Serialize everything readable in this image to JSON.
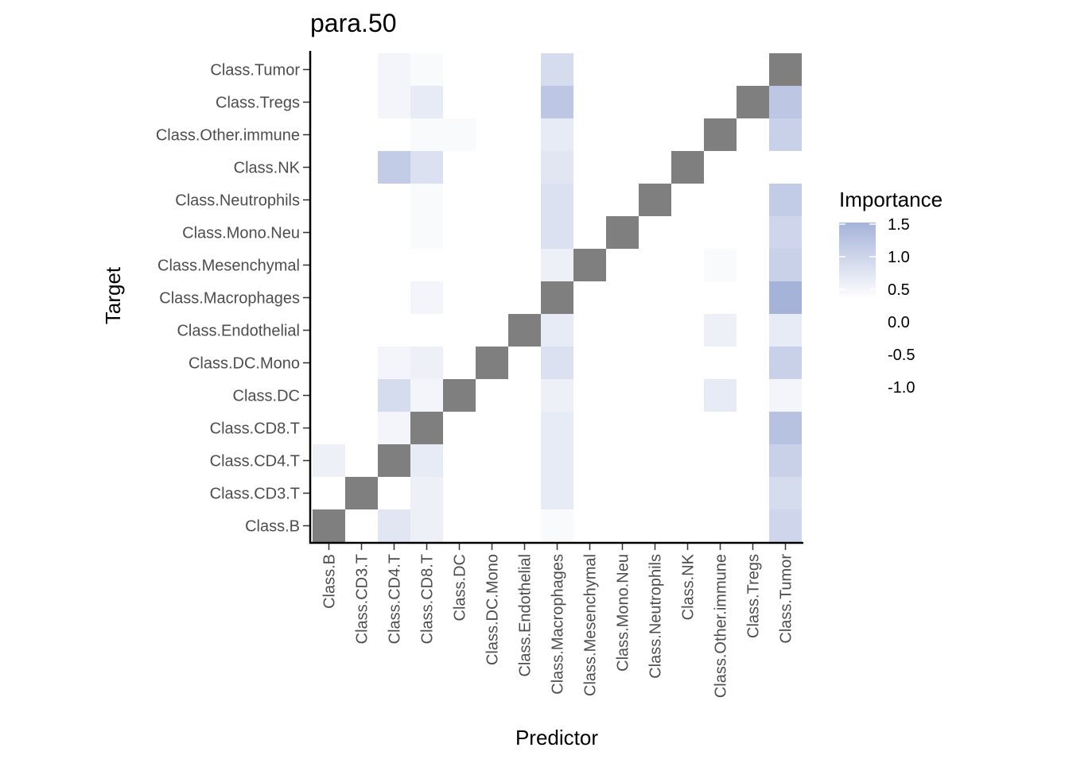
{
  "chart_data": {
    "type": "heatmap",
    "title": "para.50",
    "xlabel": "Predictor",
    "ylabel": "Target",
    "x_categories": [
      "Class.B",
      "Class.CD3.T",
      "Class.CD4.T",
      "Class.CD8.T",
      "Class.DC",
      "Class.DC.Mono",
      "Class.Endothelial",
      "Class.Macrophages",
      "Class.Mesenchymal",
      "Class.Mono.Neu",
      "Class.Neutrophils",
      "Class.NK",
      "Class.Other.immune",
      "Class.Tregs",
      "Class.Tumor"
    ],
    "y_categories": [
      "Class.B",
      "Class.CD3.T",
      "Class.CD4.T",
      "Class.CD8.T",
      "Class.DC",
      "Class.DC.Mono",
      "Class.Endothelial",
      "Class.Macrophages",
      "Class.Mesenchymal",
      "Class.Mono.Neu",
      "Class.Neutrophils",
      "Class.NK",
      "Class.Other.immune",
      "Class.Tregs",
      "Class.Tumor"
    ],
    "values": [
      [
        null,
        0.0,
        0.5,
        0.3,
        0.0,
        0.0,
        0.0,
        0.1,
        0.0,
        0.0,
        0.0,
        0.0,
        0.0,
        0.0,
        0.8
      ],
      [
        0.0,
        null,
        0.0,
        0.3,
        0.0,
        0.0,
        0.0,
        0.4,
        0.0,
        0.0,
        0.0,
        0.0,
        0.0,
        0.0,
        0.7
      ],
      [
        0.3,
        0.0,
        null,
        0.4,
        0.0,
        0.0,
        0.0,
        0.4,
        0.0,
        0.0,
        0.0,
        0.0,
        0.0,
        0.0,
        0.9
      ],
      [
        0.0,
        0.0,
        0.2,
        null,
        0.0,
        0.0,
        0.0,
        0.4,
        0.0,
        0.0,
        0.0,
        0.0,
        0.0,
        0.0,
        1.2
      ],
      [
        0.0,
        0.0,
        0.7,
        0.2,
        null,
        0.0,
        0.0,
        0.3,
        0.0,
        0.0,
        0.0,
        0.0,
        0.4,
        0.0,
        0.2
      ],
      [
        0.0,
        0.0,
        0.2,
        0.3,
        0.0,
        null,
        0.0,
        0.6,
        0.0,
        0.0,
        0.0,
        0.0,
        0.0,
        0.0,
        0.9
      ],
      [
        0.0,
        0.0,
        0.0,
        0.0,
        0.0,
        0.0,
        null,
        0.4,
        0.0,
        0.0,
        0.0,
        0.0,
        0.3,
        0.0,
        0.4
      ],
      [
        0.0,
        0.0,
        0.0,
        0.2,
        0.0,
        0.0,
        0.0,
        null,
        0.0,
        0.0,
        0.0,
        0.0,
        0.0,
        0.0,
        1.5
      ],
      [
        0.0,
        0.0,
        0.0,
        0.0,
        0.0,
        0.0,
        0.0,
        0.3,
        null,
        0.0,
        0.0,
        0.0,
        0.1,
        0.0,
        0.9
      ],
      [
        0.0,
        0.0,
        0.0,
        0.1,
        0.0,
        0.0,
        0.0,
        0.6,
        0.0,
        null,
        0.0,
        0.0,
        0.0,
        0.0,
        0.8
      ],
      [
        0.0,
        0.0,
        0.0,
        0.1,
        0.0,
        0.0,
        0.0,
        0.6,
        0.0,
        0.0,
        null,
        0.0,
        0.0,
        0.0,
        1.0
      ],
      [
        0.0,
        0.0,
        1.0,
        0.6,
        0.0,
        0.0,
        0.0,
        0.5,
        0.0,
        0.0,
        0.0,
        null,
        0.0,
        0.0,
        0.0
      ],
      [
        0.0,
        0.0,
        0.0,
        0.1,
        0.1,
        0.0,
        0.0,
        0.4,
        0.0,
        0.0,
        0.0,
        0.0,
        null,
        0.0,
        0.9
      ],
      [
        0.0,
        0.0,
        0.2,
        0.4,
        0.0,
        0.0,
        0.0,
        1.1,
        0.0,
        0.0,
        0.0,
        0.0,
        0.0,
        null,
        1.1
      ],
      [
        0.0,
        0.0,
        0.2,
        0.1,
        0.0,
        0.0,
        0.0,
        0.7,
        0.0,
        0.0,
        0.0,
        0.0,
        0.0,
        0.0,
        null
      ]
    ],
    "diagonal_color": "#7f7f7f",
    "color_low": "#ffffff",
    "color_high": "#a5b3d9",
    "color_range": [
      0.0,
      1.5
    ],
    "legend": {
      "title": "Importance",
      "labels": [
        "1.5",
        "1.0",
        "0.5",
        "0.0",
        "-0.5",
        "-1.0"
      ],
      "placement": "right"
    },
    "grid": false
  }
}
